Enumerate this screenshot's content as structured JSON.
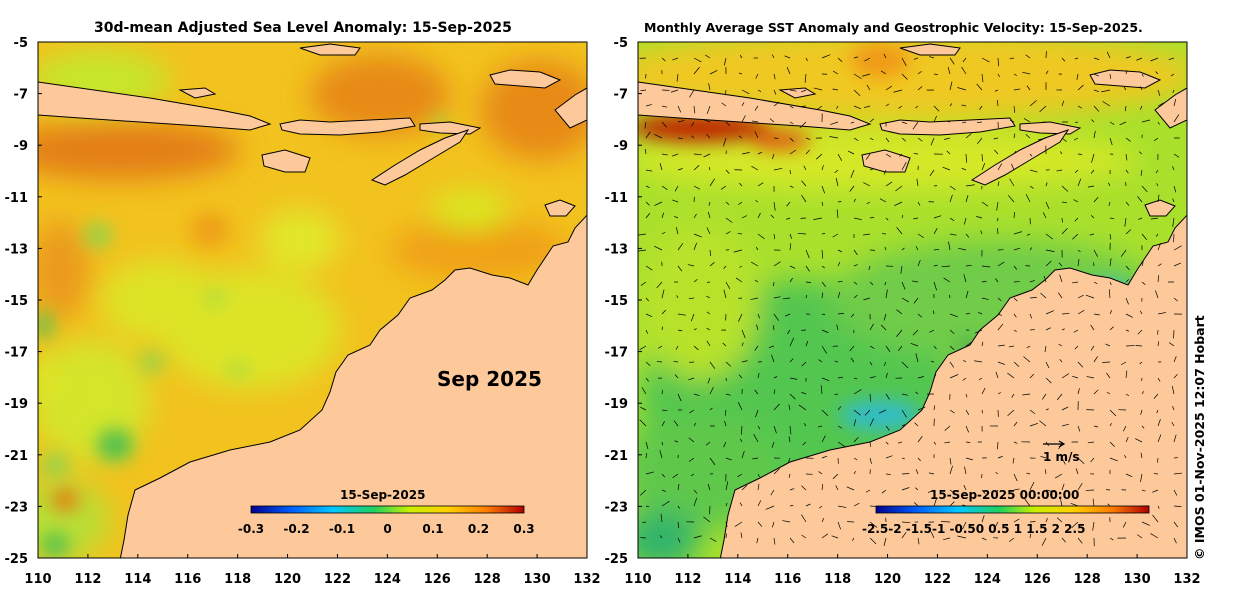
{
  "left_map": {
    "title": "30d-mean Adjusted Sea Level Anomaly: 15-Sep-2025",
    "month_label": "Sep 2025",
    "colorbar": {
      "date": "15-Sep-2025",
      "ticks": [
        "-0.3",
        "-0.2",
        "-0.1",
        "0",
        "0.1",
        "0.2",
        "0.3"
      ],
      "range": [
        -0.3,
        0.3
      ],
      "colors": [
        "#00008f",
        "#0060ff",
        "#00c8ff",
        "#20d060",
        "#c8f000",
        "#ffd000",
        "#ff8000",
        "#b00000"
      ]
    }
  },
  "right_map": {
    "title": "Monthly Average SST Anomaly  and Geostrophic Velocity: 15-Sep-2025.",
    "vector_scale_label": "1 m/s",
    "colorbar": {
      "date": "15-Sep-2025 00:00:00",
      "ticks": [
        "-2.5",
        "-2",
        "-1.5",
        "-1",
        "-0.5",
        "0",
        "0.5",
        "1",
        "1.5",
        "2",
        "2.5"
      ],
      "tick_text": "-2.5-2   -1.5-1   -0.50    0.5  1    1.5  2    2.5",
      "range": [
        -2.5,
        2.5
      ],
      "colors": [
        "#00008f",
        "#0060ff",
        "#00c8ff",
        "#20d060",
        "#c8f000",
        "#ffd000",
        "#ff8000",
        "#b00000"
      ]
    }
  },
  "axes": {
    "lon_ticks": [
      "110",
      "112",
      "114",
      "116",
      "118",
      "120",
      "122",
      "124",
      "126",
      "128",
      "130",
      "132"
    ],
    "lat_ticks": [
      "-5",
      "-7",
      "-9",
      "-11",
      "-13",
      "-15",
      "-17",
      "-19",
      "-21",
      "-23",
      "-25"
    ],
    "lon_range": [
      110,
      132
    ],
    "lat_range": [
      -25,
      -5
    ]
  },
  "credit": "© IMOS 01-Nov-2025 12:07 Hobart",
  "colors": {
    "land": "#fdc99a",
    "coast": "#000000"
  }
}
